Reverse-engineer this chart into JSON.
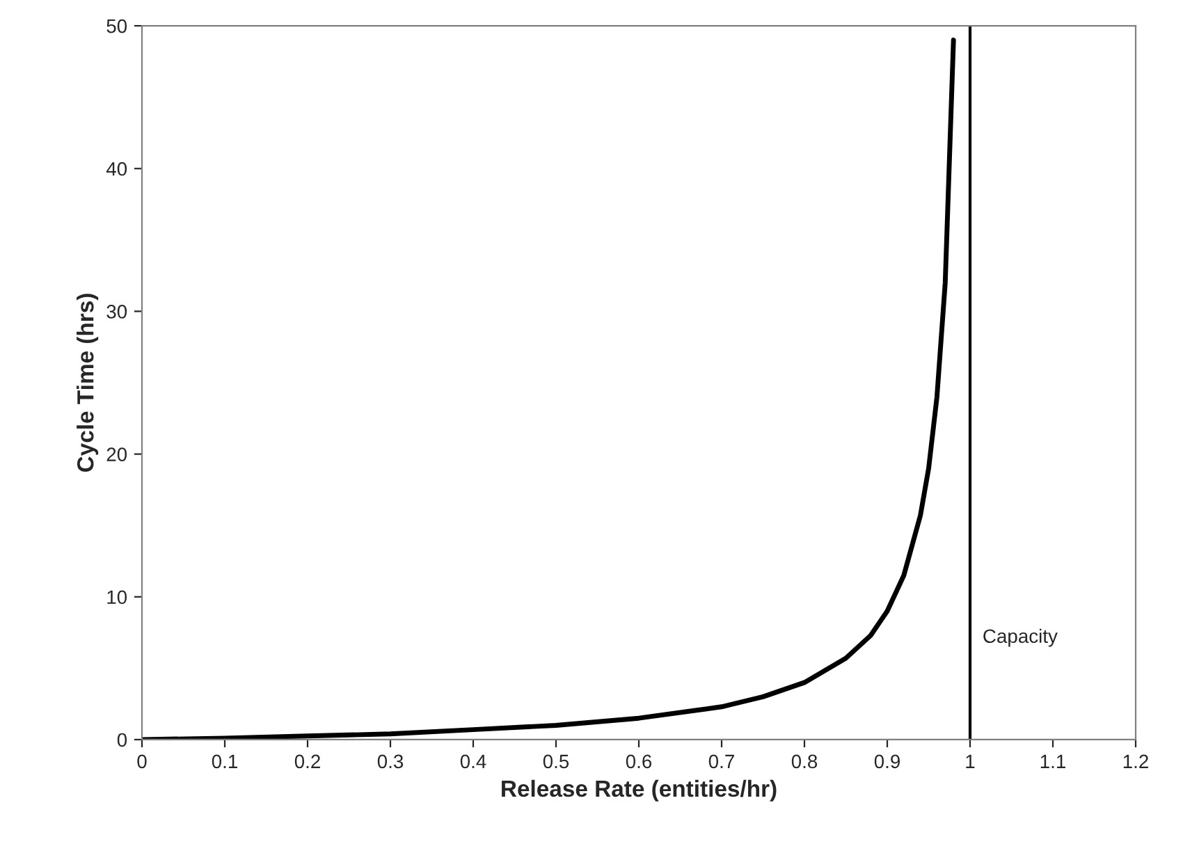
{
  "chart_data": {
    "type": "line",
    "xlabel": "Release Rate (entities/hr)",
    "ylabel": "Cycle Time (hrs)",
    "x": [
      0,
      0.1,
      0.2,
      0.3,
      0.4,
      0.5,
      0.6,
      0.7,
      0.75,
      0.8,
      0.85,
      0.88,
      0.9,
      0.92,
      0.94,
      0.95,
      0.96,
      0.97,
      0.98
    ],
    "series": [
      {
        "color": "#000000",
        "values": [
          0,
          0.1,
          0.25,
          0.4,
          0.7,
          1,
          1.5,
          2.3,
          3,
          4,
          5.7,
          7.3,
          9,
          11.5,
          15.7,
          19,
          24,
          32,
          49
        ]
      }
    ],
    "xlim": [
      0,
      1.2
    ],
    "xticks": [
      0,
      0.1,
      0.2,
      0.3,
      0.4,
      0.5,
      0.6,
      0.7,
      0.8,
      0.9,
      1,
      1.1,
      1.2
    ],
    "ylim": [
      0,
      50
    ],
    "yticks": [
      0,
      10,
      20,
      30,
      40,
      50
    ],
    "ref_lines": [
      {
        "axis": "x",
        "value": 1,
        "label": "Capacity",
        "color": "#000000"
      }
    ],
    "grid": false,
    "legend": false,
    "marker": "none",
    "line_style": "solid"
  }
}
